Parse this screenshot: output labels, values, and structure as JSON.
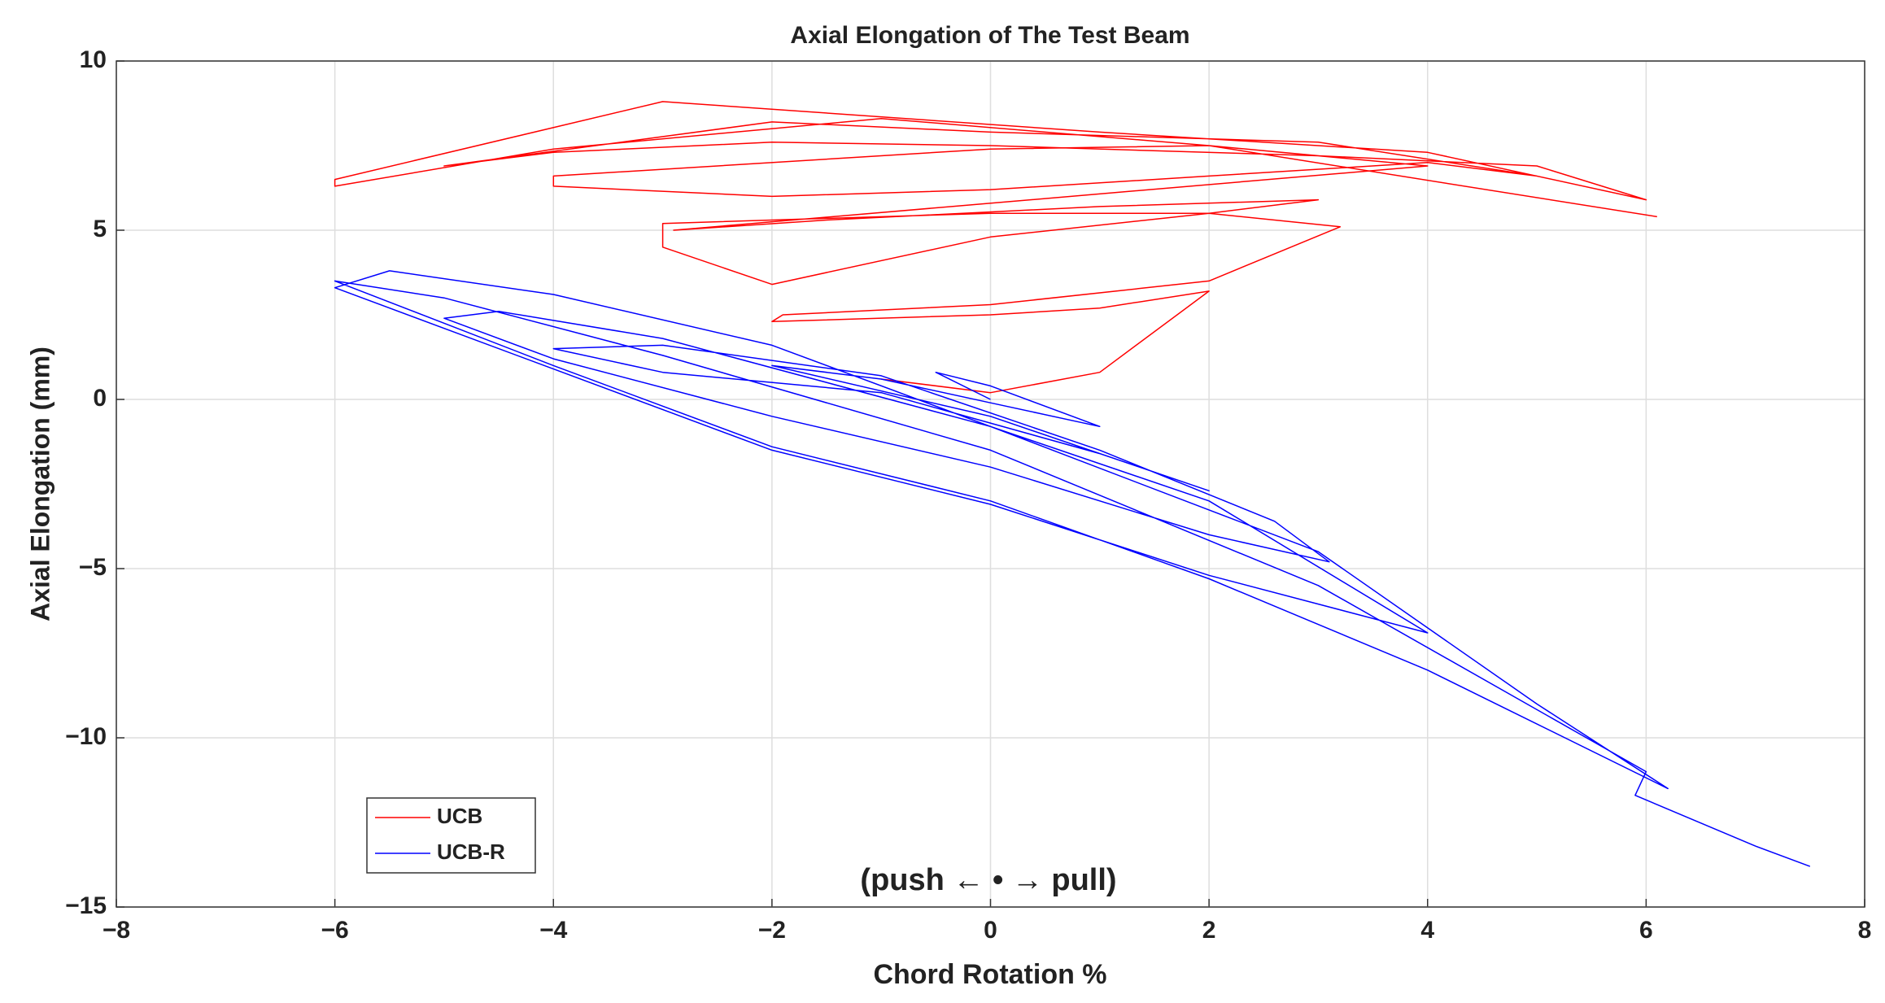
{
  "chart_data": {
    "type": "line",
    "title": "Axial Elongation of The Test Beam",
    "xlabel": "Chord Rotation %",
    "ylabel": "Axial Elongation (mm)",
    "annotation": "(push ← • → pull)",
    "xlim": [
      -8,
      8
    ],
    "ylim": [
      -15,
      10
    ],
    "xticks": [
      {
        "value": -8,
        "label": "−8"
      },
      {
        "value": -6,
        "label": "−6"
      },
      {
        "value": -4,
        "label": "−4"
      },
      {
        "value": -2,
        "label": "−2"
      },
      0,
      2,
      4,
      6,
      8
    ],
    "yticks": [
      {
        "value": -15,
        "label": "−15"
      },
      {
        "value": -10,
        "label": "−10"
      },
      {
        "value": -5,
        "label": "−5"
      },
      0,
      5,
      10
    ],
    "grid": true,
    "legend": "lower left",
    "series": [
      {
        "name": "UCB",
        "color": "#ff0000",
        "x": [
          -1,
          0,
          1,
          2,
          1,
          0,
          -2,
          -1.9,
          0,
          2,
          3.2,
          2,
          0,
          -3,
          -3,
          -2,
          0,
          2,
          3,
          1,
          -1.5,
          -2.9,
          4,
          2,
          0,
          -4,
          -4,
          -2,
          0,
          2,
          4,
          5,
          3,
          0,
          -2,
          -5,
          -4,
          -2,
          0,
          3,
          5,
          6,
          4,
          1,
          -3,
          -6,
          -6,
          -4,
          -1,
          2,
          6.1
        ],
        "values": [
          0.6,
          0.2,
          0.8,
          3.2,
          2.7,
          2.5,
          2.3,
          2.5,
          2.8,
          3.5,
          5.1,
          5.5,
          5.5,
          5.2,
          4.5,
          3.4,
          4.8,
          5.5,
          5.9,
          5.7,
          5.3,
          5.0,
          6.9,
          7.5,
          7.4,
          6.6,
          6.3,
          6.0,
          6.2,
          6.6,
          7.0,
          6.6,
          7.6,
          7.9,
          8.2,
          6.9,
          7.3,
          7.6,
          7.5,
          7.2,
          6.9,
          5.9,
          7.3,
          7.9,
          8.8,
          6.5,
          6.3,
          7.4,
          8.3,
          7.5,
          5.4
        ]
      },
      {
        "name": "UCB-R",
        "color": "#0000ff",
        "x": [
          0,
          -0.5,
          0,
          1,
          0,
          -1,
          -2,
          0,
          2,
          1,
          -1,
          -3,
          -4,
          -3,
          -1,
          1,
          2.6,
          3.1,
          2,
          0,
          -2,
          -4,
          -5,
          -4.5,
          -3,
          0,
          2,
          4,
          2,
          0,
          -2,
          -4,
          -6,
          -5.5,
          -4,
          -2,
          0,
          3,
          5,
          6.2,
          4,
          2,
          0,
          -2,
          -4,
          -6,
          -5,
          -3,
          0,
          3,
          6,
          5.9,
          7,
          7.5
        ],
        "values": [
          0,
          0.8,
          0.4,
          -0.8,
          -0.1,
          0.6,
          1.0,
          -0.5,
          -2.7,
          -1.6,
          0.2,
          0.8,
          1.5,
          1.6,
          0.7,
          -1.5,
          -3.6,
          -4.8,
          -4.0,
          -2.0,
          -0.5,
          1.2,
          2.4,
          2.6,
          1.8,
          -0.8,
          -3,
          -6.9,
          -5.2,
          -3.1,
          -1.5,
          0.9,
          3.3,
          3.8,
          3.1,
          1.6,
          -0.8,
          -4.5,
          -9,
          -11.5,
          -8,
          -5.3,
          -3,
          -1.4,
          1.0,
          3.5,
          3.0,
          1.3,
          -1.5,
          -5.5,
          -11.0,
          -11.7,
          -13.2,
          -13.8
        ]
      }
    ]
  }
}
